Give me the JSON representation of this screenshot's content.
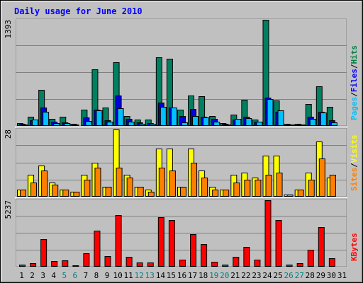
{
  "chart_data": {
    "type": "bar",
    "title": "Daily usage for June 2010",
    "categories": [
      "1",
      "2",
      "3",
      "4",
      "5",
      "6",
      "7",
      "8",
      "9",
      "10",
      "11",
      "12",
      "13",
      "14",
      "15",
      "16",
      "17",
      "18",
      "19",
      "20",
      "21",
      "22",
      "23",
      "24",
      "25",
      "26",
      "27",
      "28",
      "29",
      "30",
      "31"
    ],
    "weekend_days": [
      "5",
      "6",
      "12",
      "13",
      "19",
      "20",
      "26",
      "27"
    ],
    "grid": true,
    "panels": [
      {
        "id": "hits-files-pages",
        "max_label": "1393",
        "ymax": 1393,
        "right_labels": [
          {
            "text": "Pages",
            "color": "#00c0ff"
          },
          {
            "text": "/",
            "color": "#000000"
          },
          {
            "text": "Files",
            "color": "#0000ff"
          },
          {
            "text": "/",
            "color": "#000000"
          },
          {
            "text": "Hits",
            "color": "#008040"
          }
        ],
        "series": [
          {
            "name": "Hits",
            "color": "#008060",
            "values": [
              40,
              120,
              470,
              95,
              125,
              30,
              210,
              740,
              245,
              840,
              130,
              85,
              85,
              900,
              880,
              210,
              400,
              390,
              130,
              40,
              150,
              340,
              85,
              1393,
              330,
              30,
              30,
              290,
              520,
              250,
              0
            ]
          },
          {
            "name": "Files",
            "color": "#0000e0",
            "values": [
              30,
              70,
              240,
              60,
              45,
              20,
              110,
              210,
              70,
              400,
              90,
              50,
              40,
              310,
              240,
              130,
              220,
              120,
              90,
              30,
              80,
              120,
              60,
              370,
              190,
              20,
              20,
              120,
              190,
              70,
              0
            ]
          },
          {
            "name": "Pages",
            "color": "#00c0ff",
            "values": [
              20,
              80,
              190,
              35,
              35,
              10,
              65,
              200,
              60,
              230,
              55,
              30,
              30,
              250,
              240,
              45,
              130,
              110,
              60,
              20,
              95,
              100,
              55,
              350,
              200,
              15,
              15,
              90,
              180,
              45,
              0
            ]
          }
        ]
      },
      {
        "id": "visits-sites",
        "max_label": "28",
        "ymax": 28,
        "right_labels": [
          {
            "text": "Sites",
            "color": "#ff8000"
          },
          {
            "text": "/",
            "color": "#000000"
          },
          {
            "text": "Visits",
            "color": "#ffff00"
          }
        ],
        "series": [
          {
            "name": "Visits",
            "color": "#ffff00",
            "values": [
              3,
              9,
              13,
              6,
              3,
              2,
              9,
              14,
              4,
              28,
              9,
              4,
              3,
              20,
              20,
              4,
              20,
              11,
              4,
              3,
              9,
              10,
              8,
              17,
              17,
              1,
              3,
              10,
              23,
              8,
              0
            ]
          },
          {
            "name": "Sites",
            "color": "#ff8000",
            "values": [
              3,
              6,
              11,
              5,
              3,
              2,
              7,
              12,
              4,
              12,
              8,
              4,
              2,
              12,
              11,
              4,
              14,
              8,
              3,
              3,
              6,
              7,
              7,
              9,
              10,
              1,
              3,
              7,
              16,
              9,
              0
            ]
          }
        ]
      },
      {
        "id": "kbytes",
        "max_label": "5237",
        "ymax": 5237,
        "right_labels": [
          {
            "text": "KBytes",
            "color": "#ff0000"
          }
        ],
        "series": [
          {
            "name": "KBytes",
            "color": "#ff0000",
            "values": [
              180,
              280,
              2200,
              460,
              500,
              130,
              1080,
              2850,
              850,
              4060,
              780,
              320,
              320,
              3890,
              3680,
              540,
              2540,
              1790,
              380,
              160,
              800,
              1570,
              550,
              5237,
              3680,
              160,
              300,
              1350,
              3100,
              680,
              0
            ]
          }
        ]
      }
    ]
  }
}
